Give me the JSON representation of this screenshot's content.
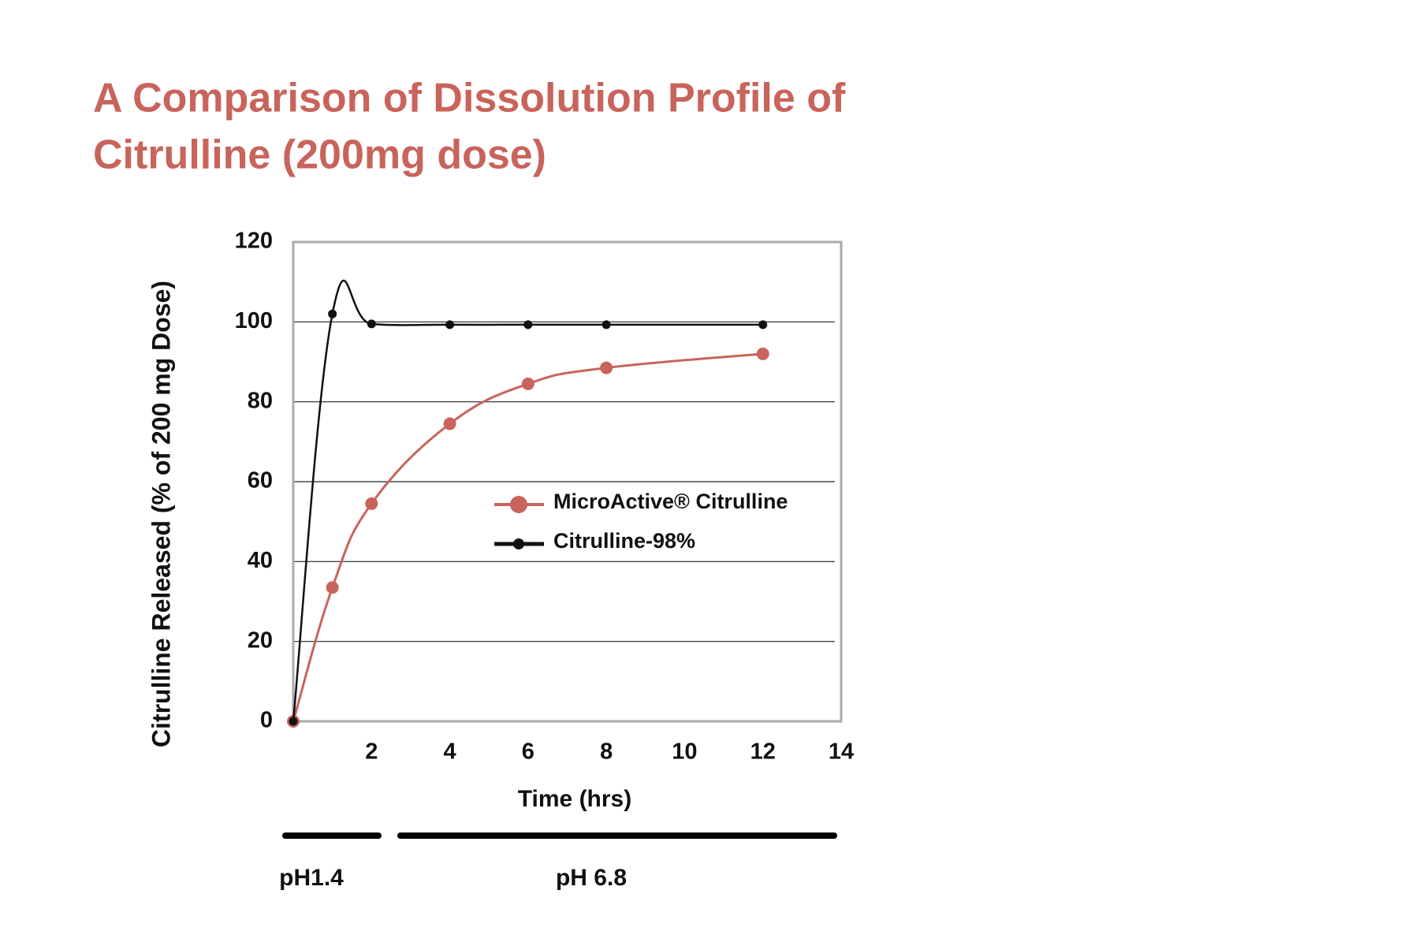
{
  "chart_data": {
    "type": "line",
    "title": [
      "A Comparison of Dissolution Profile of",
      "Citrulline (200mg dose)"
    ],
    "x_label": "Time (hrs)",
    "y_label": "Citrulline Released (% of 200 mg Dose)",
    "xlim": [
      0,
      14
    ],
    "ylim": [
      0,
      120
    ],
    "xticks": [
      2,
      4,
      6,
      8,
      10,
      12,
      14
    ],
    "yticks": [
      0,
      20,
      40,
      60,
      80,
      100,
      120
    ],
    "grid": true,
    "legend": "center-right",
    "series": [
      {
        "name": "MicroActive® Citrulline",
        "color": "#c8645c",
        "x": [
          0,
          1,
          2,
          4,
          6,
          8,
          12
        ],
        "values": [
          0,
          33.5,
          54.5,
          74.5,
          84.5,
          88.5,
          92
        ]
      },
      {
        "name": "Citrulline-98%",
        "color": "#111111",
        "x": [
          0,
          1,
          2,
          4,
          6,
          8,
          12
        ],
        "values": [
          0,
          102,
          99.5,
          99.3,
          99.3,
          99.3,
          99.3
        ]
      }
    ],
    "annotations": [
      "pH1.4",
      "pH 6.8"
    ]
  }
}
